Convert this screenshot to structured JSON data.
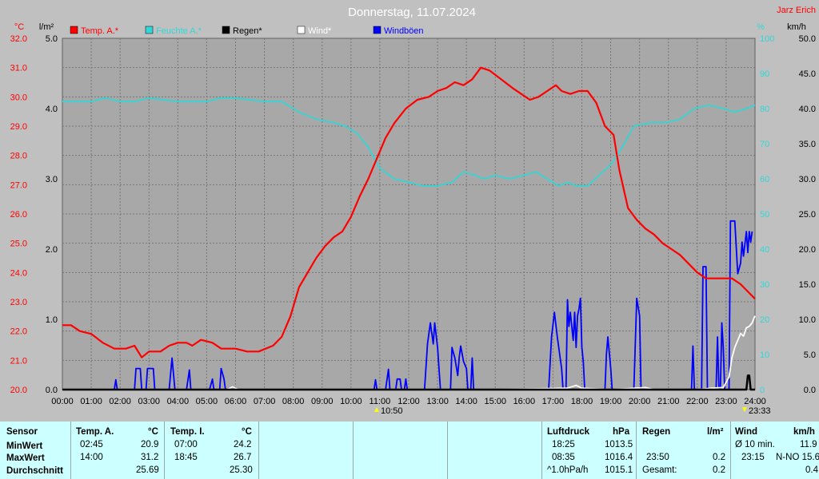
{
  "title": "Donnerstag, 11.07.2024",
  "author": "Jarz Erich",
  "colors": {
    "temp": "#ff0000",
    "humidity": "#33d6d6",
    "rain": "#000000",
    "wind": "#ffffff",
    "gust": "#0000ff",
    "background": "#a8a8a8",
    "table": "#ccffff"
  },
  "axes": {
    "left_temp_unit": "°C",
    "left_rain_unit": "l/m²",
    "right_hum_unit": "%",
    "right_wind_unit": "km/h",
    "temp_ticks": [
      "32.0",
      "31.0",
      "30.0",
      "29.0",
      "28.0",
      "27.0",
      "26.0",
      "25.0",
      "24.0",
      "23.0",
      "22.0",
      "21.0",
      "20.0"
    ],
    "rain_ticks": [
      "5.0",
      "4.0",
      "3.0",
      "2.0",
      "1.0",
      "0.0"
    ],
    "hum_ticks": [
      "100",
      "90",
      "80",
      "70",
      "60",
      "50",
      "40",
      "30",
      "20",
      "10",
      "0"
    ],
    "wind_ticks": [
      "50.0",
      "45.0",
      "40.0",
      "35.0",
      "30.0",
      "25.0",
      "20.0",
      "15.0",
      "10.0",
      "5.0",
      "0.0"
    ],
    "time_ticks": [
      "00:00",
      "01:00",
      "02:00",
      "03:00",
      "04:00",
      "05:00",
      "06:00",
      "07:00",
      "08:00",
      "09:00",
      "10:00",
      "11:00",
      "12:00",
      "13:00",
      "14:00",
      "15:00",
      "16:00",
      "17:00",
      "18:00",
      "19:00",
      "20:00",
      "21:00",
      "22:00",
      "23:00",
      "24:00"
    ],
    "sunrise": "10:50",
    "sunset": "23:33"
  },
  "legend": [
    {
      "label": "Temp. A.*",
      "color": "#ff0000"
    },
    {
      "label": "Feuchte A.*",
      "color": "#33d6d6"
    },
    {
      "label": "Regen*",
      "color": "#000000"
    },
    {
      "label": "Wind*",
      "color": "#ffffff"
    },
    {
      "label": "Windböen",
      "color": "#0000ff"
    }
  ],
  "chart_data": {
    "type": "line",
    "title": "Donnerstag, 11.07.2024",
    "x_unit": "hours",
    "xlim": [
      0,
      24
    ],
    "ylim_temp": [
      20,
      32
    ],
    "ylim_rain": [
      0,
      5
    ],
    "ylim_humidity": [
      0,
      100
    ],
    "ylim_wind": [
      0,
      50
    ],
    "grid": true,
    "series": [
      {
        "name": "Temp. A.*",
        "axis": "temp",
        "color": "#ff0000",
        "points": [
          [
            0,
            22.2
          ],
          [
            0.3,
            22.2
          ],
          [
            0.6,
            22.0
          ],
          [
            1,
            21.9
          ],
          [
            1.4,
            21.6
          ],
          [
            1.8,
            21.4
          ],
          [
            2.2,
            21.4
          ],
          [
            2.5,
            21.5
          ],
          [
            2.75,
            21.1
          ],
          [
            3,
            21.3
          ],
          [
            3.4,
            21.3
          ],
          [
            3.7,
            21.5
          ],
          [
            4,
            21.6
          ],
          [
            4.3,
            21.6
          ],
          [
            4.5,
            21.5
          ],
          [
            4.8,
            21.7
          ],
          [
            5.2,
            21.6
          ],
          [
            5.5,
            21.4
          ],
          [
            6,
            21.4
          ],
          [
            6.4,
            21.3
          ],
          [
            6.8,
            21.3
          ],
          [
            7.3,
            21.5
          ],
          [
            7.6,
            21.8
          ],
          [
            7.9,
            22.5
          ],
          [
            8.2,
            23.5
          ],
          [
            8.5,
            24.0
          ],
          [
            8.8,
            24.5
          ],
          [
            9.1,
            24.9
          ],
          [
            9.4,
            25.2
          ],
          [
            9.7,
            25.4
          ],
          [
            10,
            25.9
          ],
          [
            10.3,
            26.6
          ],
          [
            10.6,
            27.2
          ],
          [
            10.9,
            27.9
          ],
          [
            11.2,
            28.6
          ],
          [
            11.5,
            29.1
          ],
          [
            11.9,
            29.6
          ],
          [
            12.3,
            29.9
          ],
          [
            12.7,
            30.0
          ],
          [
            13.0,
            30.2
          ],
          [
            13.3,
            30.3
          ],
          [
            13.6,
            30.5
          ],
          [
            13.9,
            30.4
          ],
          [
            14.2,
            30.6
          ],
          [
            14.5,
            31.0
          ],
          [
            14.8,
            30.9
          ],
          [
            15.2,
            30.6
          ],
          [
            15.6,
            30.3
          ],
          [
            15.9,
            30.1
          ],
          [
            16.2,
            29.9
          ],
          [
            16.5,
            30.0
          ],
          [
            16.8,
            30.2
          ],
          [
            17.1,
            30.4
          ],
          [
            17.3,
            30.2
          ],
          [
            17.6,
            30.1
          ],
          [
            17.9,
            30.2
          ],
          [
            18.2,
            30.2
          ],
          [
            18.5,
            29.8
          ],
          [
            18.8,
            29.0
          ],
          [
            19.1,
            28.7
          ],
          [
            19.3,
            27.5
          ],
          [
            19.6,
            26.2
          ],
          [
            19.9,
            25.8
          ],
          [
            20.2,
            25.5
          ],
          [
            20.5,
            25.3
          ],
          [
            20.8,
            25.0
          ],
          [
            21.1,
            24.8
          ],
          [
            21.4,
            24.6
          ],
          [
            21.7,
            24.3
          ],
          [
            22.0,
            24.0
          ],
          [
            22.3,
            23.8
          ],
          [
            22.6,
            23.8
          ],
          [
            22.9,
            23.8
          ],
          [
            23.2,
            23.8
          ],
          [
            23.5,
            23.6
          ],
          [
            23.8,
            23.3
          ],
          [
            24,
            23.1
          ]
        ]
      },
      {
        "name": "Feuchte A.*",
        "axis": "humidity",
        "color": "#33d6d6",
        "points": [
          [
            0,
            82
          ],
          [
            1,
            82
          ],
          [
            1.5,
            83
          ],
          [
            2,
            82
          ],
          [
            2.5,
            82
          ],
          [
            3,
            83
          ],
          [
            4,
            82
          ],
          [
            5,
            82
          ],
          [
            5.5,
            83
          ],
          [
            6,
            83
          ],
          [
            7,
            82
          ],
          [
            7.6,
            82
          ],
          [
            8.2,
            79
          ],
          [
            8.8,
            77
          ],
          [
            9.4,
            76
          ],
          [
            9.8,
            75
          ],
          [
            10.2,
            73
          ],
          [
            10.6,
            69
          ],
          [
            11,
            63
          ],
          [
            11.5,
            60
          ],
          [
            12,
            59
          ],
          [
            12.5,
            58
          ],
          [
            13,
            58
          ],
          [
            13.5,
            59
          ],
          [
            13.9,
            62
          ],
          [
            14.3,
            61
          ],
          [
            14.6,
            60
          ],
          [
            15,
            61
          ],
          [
            15.5,
            60
          ],
          [
            16,
            61
          ],
          [
            16.4,
            62
          ],
          [
            16.8,
            60
          ],
          [
            17.2,
            58
          ],
          [
            17.5,
            59
          ],
          [
            17.8,
            58
          ],
          [
            18.2,
            58
          ],
          [
            18.6,
            61
          ],
          [
            19,
            64
          ],
          [
            19.4,
            69
          ],
          [
            19.8,
            75
          ],
          [
            20.4,
            76
          ],
          [
            20.9,
            76
          ],
          [
            21.4,
            77
          ],
          [
            21.9,
            80
          ],
          [
            22.4,
            81
          ],
          [
            22.9,
            80
          ],
          [
            23.3,
            79
          ],
          [
            23.7,
            80
          ],
          [
            24,
            81
          ]
        ]
      },
      {
        "name": "Regen*",
        "axis": "rain",
        "color": "#000000",
        "points": [
          [
            0,
            0
          ],
          [
            23.7,
            0
          ],
          [
            23.75,
            0.2
          ],
          [
            23.8,
            0.2
          ],
          [
            23.85,
            0
          ],
          [
            24,
            0
          ]
        ]
      },
      {
        "name": "Wind*",
        "axis": "wind",
        "color": "#ffffff",
        "points": [
          [
            0,
            0
          ],
          [
            5.7,
            0
          ],
          [
            5.9,
            0.4
          ],
          [
            6.1,
            0
          ],
          [
            15,
            0
          ],
          [
            17.5,
            0.2
          ],
          [
            17.8,
            0.6
          ],
          [
            18,
            0.2
          ],
          [
            19,
            0
          ],
          [
            20.2,
            0.3
          ],
          [
            20.5,
            0
          ],
          [
            22,
            0
          ],
          [
            22.5,
            0.2
          ],
          [
            22.9,
            0.3
          ],
          [
            23.1,
            1.8
          ],
          [
            23.2,
            4.5
          ],
          [
            23.3,
            6.0
          ],
          [
            23.4,
            7.0
          ],
          [
            23.5,
            8.0
          ],
          [
            23.6,
            7.6
          ],
          [
            23.7,
            8.8
          ],
          [
            23.8,
            9.0
          ],
          [
            23.9,
            9.5
          ],
          [
            24,
            10.5
          ]
        ]
      },
      {
        "name": "Windböen",
        "axis": "wind",
        "color": "#0000ff",
        "points": [
          [
            0,
            0
          ],
          [
            1.8,
            0
          ],
          [
            1.85,
            1.4
          ],
          [
            1.9,
            0
          ],
          [
            2.5,
            0
          ],
          [
            2.55,
            3.0
          ],
          [
            2.7,
            3.0
          ],
          [
            2.75,
            0
          ],
          [
            2.9,
            0
          ],
          [
            2.95,
            3.0
          ],
          [
            3.15,
            3.0
          ],
          [
            3.2,
            0
          ],
          [
            3.7,
            0
          ],
          [
            3.8,
            4.5
          ],
          [
            3.9,
            0
          ],
          [
            4.3,
            0
          ],
          [
            4.4,
            2.8
          ],
          [
            4.45,
            0
          ],
          [
            5.1,
            0
          ],
          [
            5.2,
            1.5
          ],
          [
            5.25,
            0
          ],
          [
            5.45,
            0
          ],
          [
            5.5,
            3.0
          ],
          [
            5.6,
            1.5
          ],
          [
            5.65,
            0
          ],
          [
            10.8,
            0
          ],
          [
            10.85,
            1.4
          ],
          [
            10.9,
            0
          ],
          [
            11.2,
            0
          ],
          [
            11.3,
            2.9
          ],
          [
            11.35,
            0
          ],
          [
            11.55,
            0
          ],
          [
            11.6,
            1.5
          ],
          [
            11.7,
            1.5
          ],
          [
            11.75,
            0
          ],
          [
            11.85,
            0
          ],
          [
            11.9,
            1.5
          ],
          [
            11.95,
            0
          ],
          [
            12.55,
            0
          ],
          [
            12.65,
            6.5
          ],
          [
            12.75,
            9.5
          ],
          [
            12.85,
            6.5
          ],
          [
            12.9,
            9.5
          ],
          [
            13.0,
            6.0
          ],
          [
            13.1,
            0
          ],
          [
            13.45,
            0
          ],
          [
            13.5,
            6.0
          ],
          [
            13.6,
            4.5
          ],
          [
            13.7,
            2.0
          ],
          [
            13.75,
            4.5
          ],
          [
            13.8,
            6.2
          ],
          [
            13.9,
            4.0
          ],
          [
            14.0,
            3.0
          ],
          [
            14.05,
            0
          ],
          [
            14.15,
            0
          ],
          [
            14.2,
            4.5
          ],
          [
            14.25,
            0
          ],
          [
            16.85,
            0
          ],
          [
            16.95,
            7.5
          ],
          [
            17.05,
            11.0
          ],
          [
            17.15,
            7.5
          ],
          [
            17.3,
            3.0
          ],
          [
            17.35,
            0
          ],
          [
            17.45,
            0
          ],
          [
            17.5,
            12.8
          ],
          [
            17.55,
            9.0
          ],
          [
            17.6,
            11.0
          ],
          [
            17.7,
            7.0
          ],
          [
            17.75,
            11.0
          ],
          [
            17.8,
            6.0
          ],
          [
            17.85,
            10.5
          ],
          [
            17.9,
            11.5
          ],
          [
            17.95,
            13.0
          ],
          [
            18.0,
            6.0
          ],
          [
            18.05,
            4.0
          ],
          [
            18.1,
            0
          ],
          [
            18.8,
            0
          ],
          [
            18.85,
            5.0
          ],
          [
            18.9,
            7.5
          ],
          [
            19.0,
            3.0
          ],
          [
            19.05,
            0
          ],
          [
            19.8,
            0
          ],
          [
            19.9,
            13.0
          ],
          [
            20.0,
            10.5
          ],
          [
            20.05,
            0
          ],
          [
            21.8,
            0
          ],
          [
            21.85,
            6.2
          ],
          [
            21.9,
            0
          ],
          [
            22.15,
            0
          ],
          [
            22.2,
            17.5
          ],
          [
            22.3,
            17.5
          ],
          [
            22.35,
            0
          ],
          [
            22.65,
            0
          ],
          [
            22.7,
            7.5
          ],
          [
            22.75,
            0
          ],
          [
            22.8,
            0
          ],
          [
            22.85,
            9.5
          ],
          [
            22.9,
            6.0
          ],
          [
            22.95,
            0
          ],
          [
            23.1,
            0
          ],
          [
            23.15,
            24.0
          ],
          [
            23.3,
            24.0
          ],
          [
            23.4,
            16.5
          ],
          [
            23.5,
            18.0
          ],
          [
            23.55,
            21.0
          ],
          [
            23.6,
            19.0
          ],
          [
            23.7,
            22.5
          ],
          [
            23.75,
            19.5
          ],
          [
            23.8,
            22.5
          ],
          [
            23.85,
            21.0
          ],
          [
            23.9,
            22.5
          ]
        ]
      }
    ]
  },
  "table": {
    "row_labels": [
      "Sensor",
      "MinWert",
      "MaxWert",
      "Durchschnitt"
    ],
    "temp_a": {
      "header": "Temp. A.",
      "unit": "°C",
      "min_time": "02:45",
      "min": "20.9",
      "max_time": "14:00",
      "max": "31.2",
      "avg": "25.69"
    },
    "temp_i": {
      "header": "Temp. I.",
      "unit": "°C",
      "min_time": "07:00",
      "min": "24.2",
      "max_time": "18:45",
      "max": "26.7",
      "avg": "25.30"
    },
    "pressure": {
      "header": "Luftdruck",
      "unit": "hPa",
      "min_time": "18:25",
      "min": "1013.5",
      "max_time": "08:35",
      "max": "1016.4",
      "trend_label": "^1.0hPa/h",
      "trend_value": "1015.1"
    },
    "rain": {
      "header": "Regen",
      "unit": "l/m²",
      "time": "23:50",
      "value": "0.2",
      "total_label": "Gesamt:",
      "total": "0.2"
    },
    "wind": {
      "header": "Wind",
      "unit": "km/h",
      "avg_label": "Ø 10 min.",
      "avg": "11.9",
      "max_time": "23:15",
      "max": "N-NO 15.6",
      "mean": "0.4"
    }
  }
}
